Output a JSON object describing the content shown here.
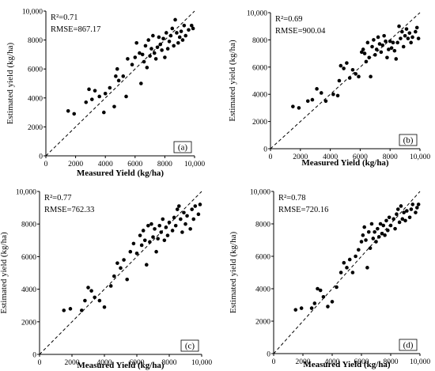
{
  "chart_data": [
    {
      "type": "scatter",
      "panel": "a",
      "panel_label": "(a)",
      "stats": {
        "r2": "R²=0.71",
        "rmse": "RMSE=867.17"
      },
      "xlabel": "Measured Yield (kg/ha)",
      "ylabel": "Estimated yield (kg/ha)",
      "xlim": [
        0,
        10000
      ],
      "ylim": [
        0,
        10000
      ],
      "xticks": [
        "0",
        "2000",
        "4000",
        "6000",
        "8000",
        "10,000"
      ],
      "yticks": [
        "0",
        "2000",
        "4000",
        "6000",
        "8000",
        "10,000"
      ],
      "reference_line": "1:1 dashed",
      "points": [
        [
          1500,
          3100
        ],
        [
          1900,
          2900
        ],
        [
          2700,
          3700
        ],
        [
          2900,
          4600
        ],
        [
          3100,
          3900
        ],
        [
          3300,
          4500
        ],
        [
          3600,
          4100
        ],
        [
          3900,
          3000
        ],
        [
          4000,
          4300
        ],
        [
          4300,
          4700
        ],
        [
          4600,
          3400
        ],
        [
          4700,
          5500
        ],
        [
          4800,
          6000
        ],
        [
          4900,
          5200
        ],
        [
          5200,
          5500
        ],
        [
          5400,
          4100
        ],
        [
          5500,
          6700
        ],
        [
          5800,
          6300
        ],
        [
          6000,
          6800
        ],
        [
          6100,
          7800
        ],
        [
          6300,
          7100
        ],
        [
          6400,
          5000
        ],
        [
          6500,
          7000
        ],
        [
          6600,
          6500
        ],
        [
          6700,
          7600
        ],
        [
          6800,
          6100
        ],
        [
          6900,
          8000
        ],
        [
          7000,
          6900
        ],
        [
          7100,
          7400
        ],
        [
          7200,
          8300
        ],
        [
          7300,
          7100
        ],
        [
          7400,
          6700
        ],
        [
          7500,
          7500
        ],
        [
          7600,
          8200
        ],
        [
          7700,
          7700
        ],
        [
          7800,
          7300
        ],
        [
          7900,
          8100
        ],
        [
          8000,
          6800
        ],
        [
          8100,
          8500
        ],
        [
          8200,
          7400
        ],
        [
          8300,
          7900
        ],
        [
          8400,
          8300
        ],
        [
          8500,
          8800
        ],
        [
          8600,
          7600
        ],
        [
          8700,
          9400
        ],
        [
          8800,
          8500
        ],
        [
          8900,
          7800
        ],
        [
          9000,
          8200
        ],
        [
          9100,
          8600
        ],
        [
          9200,
          8000
        ],
        [
          9300,
          9000
        ],
        [
          9400,
          8300
        ],
        [
          9600,
          8700
        ],
        [
          9800,
          9000
        ],
        [
          9900,
          8800
        ]
      ]
    },
    {
      "type": "scatter",
      "panel": "b",
      "panel_label": "(b)",
      "stats": {
        "r2": "R²=0.69",
        "rmse": "RMSE=900.04"
      },
      "xlabel": "Measured Yield (kg/ha)",
      "ylabel": "Estimated yield (kg/ha)",
      "xlim": [
        0,
        10000
      ],
      "ylim": [
        0,
        10000
      ],
      "xticks": [
        "0",
        "2000",
        "4000",
        "6000",
        "8000",
        "10,000"
      ],
      "yticks": [
        "0",
        "2000",
        "4000",
        "6000",
        "8000",
        "10,000"
      ],
      "reference_line": "1:1 dashed",
      "points": [
        [
          1500,
          3100
        ],
        [
          1900,
          3000
        ],
        [
          2500,
          3500
        ],
        [
          2800,
          3600
        ],
        [
          3100,
          4400
        ],
        [
          3400,
          4100
        ],
        [
          3700,
          3500
        ],
        [
          4200,
          4000
        ],
        [
          4500,
          3900
        ],
        [
          4600,
          5000
        ],
        [
          4700,
          6100
        ],
        [
          4900,
          5900
        ],
        [
          5100,
          6300
        ],
        [
          5300,
          5200
        ],
        [
          5500,
          5800
        ],
        [
          5700,
          5500
        ],
        [
          5900,
          5300
        ],
        [
          6100,
          7100
        ],
        [
          6200,
          7300
        ],
        [
          6300,
          7000
        ],
        [
          6400,
          6400
        ],
        [
          6500,
          7800
        ],
        [
          6600,
          6700
        ],
        [
          6700,
          5300
        ],
        [
          6800,
          7500
        ],
        [
          6900,
          8000
        ],
        [
          7000,
          6900
        ],
        [
          7100,
          7300
        ],
        [
          7200,
          8200
        ],
        [
          7300,
          7700
        ],
        [
          7400,
          7100
        ],
        [
          7500,
          7600
        ],
        [
          7600,
          8300
        ],
        [
          7700,
          7900
        ],
        [
          7800,
          6700
        ],
        [
          7900,
          7300
        ],
        [
          8000,
          7900
        ],
        [
          8100,
          7400
        ],
        [
          8200,
          7800
        ],
        [
          8300,
          7200
        ],
        [
          8400,
          6600
        ],
        [
          8500,
          7800
        ],
        [
          8600,
          9000
        ],
        [
          8700,
          8100
        ],
        [
          8800,
          8600
        ],
        [
          8900,
          7500
        ],
        [
          9000,
          8300
        ],
        [
          9100,
          8800
        ],
        [
          9200,
          8100
        ],
        [
          9300,
          8500
        ],
        [
          9400,
          7800
        ],
        [
          9500,
          8200
        ],
        [
          9700,
          8600
        ],
        [
          9800,
          8900
        ],
        [
          9900,
          8100
        ]
      ]
    },
    {
      "type": "scatter",
      "panel": "c",
      "panel_label": "(c)",
      "stats": {
        "r2": "R²=0.77",
        "rmse": "RMSE=762.33"
      },
      "xlabel": "Measured Yield (kg/ha)",
      "ylabel": "Estimated yield (kg/ha)",
      "xlim": [
        0,
        10000
      ],
      "ylim": [
        0,
        10000
      ],
      "xticks": [
        "0",
        "2000",
        "4000",
        "6000",
        "8000",
        "10,000"
      ],
      "yticks": [
        "0",
        "2000",
        "4000",
        "6000",
        "8000",
        "10,000"
      ],
      "reference_line": "1:1 dashed",
      "points": [
        [
          1500,
          2700
        ],
        [
          1900,
          2800
        ],
        [
          2600,
          2700
        ],
        [
          2800,
          3300
        ],
        [
          3000,
          4100
        ],
        [
          3200,
          3900
        ],
        [
          3400,
          3500
        ],
        [
          3700,
          3300
        ],
        [
          4000,
          2900
        ],
        [
          4400,
          4200
        ],
        [
          4600,
          4800
        ],
        [
          4800,
          5600
        ],
        [
          5000,
          5300
        ],
        [
          5200,
          5800
        ],
        [
          5400,
          4600
        ],
        [
          5600,
          6300
        ],
        [
          5800,
          6800
        ],
        [
          6000,
          6200
        ],
        [
          6200,
          7300
        ],
        [
          6300,
          6700
        ],
        [
          6400,
          7600
        ],
        [
          6500,
          7000
        ],
        [
          6600,
          5500
        ],
        [
          6700,
          7900
        ],
        [
          6800,
          6900
        ],
        [
          6900,
          8000
        ],
        [
          7000,
          7200
        ],
        [
          7100,
          7700
        ],
        [
          7200,
          6300
        ],
        [
          7300,
          7100
        ],
        [
          7400,
          7900
        ],
        [
          7500,
          7500
        ],
        [
          7600,
          8300
        ],
        [
          7700,
          7000
        ],
        [
          7800,
          7800
        ],
        [
          7900,
          7300
        ],
        [
          8000,
          8100
        ],
        [
          8200,
          7600
        ],
        [
          8300,
          8400
        ],
        [
          8400,
          7900
        ],
        [
          8500,
          8900
        ],
        [
          8600,
          9100
        ],
        [
          8700,
          8300
        ],
        [
          8800,
          7500
        ],
        [
          8900,
          8700
        ],
        [
          9000,
          8000
        ],
        [
          9100,
          8500
        ],
        [
          9300,
          7700
        ],
        [
          9400,
          8900
        ],
        [
          9500,
          8300
        ],
        [
          9600,
          9100
        ],
        [
          9800,
          8600
        ],
        [
          9900,
          9200
        ]
      ]
    },
    {
      "type": "scatter",
      "panel": "d",
      "panel_label": "(d)",
      "stats": {
        "r2": "R²=0.78",
        "rmse": "RMSE=720.16"
      },
      "xlabel": "Measured Yield (kg/ha)",
      "ylabel": "Estimated yield (kg/ha)",
      "xlim": [
        0,
        10000
      ],
      "ylim": [
        0,
        10000
      ],
      "xticks": [
        "0",
        "2000",
        "4000",
        "6000",
        "8000",
        "10,000"
      ],
      "yticks": [
        "0",
        "2000",
        "4000",
        "6000",
        "8000",
        "10,000"
      ],
      "reference_line": "1:1 dashed",
      "points": [
        [
          1500,
          2700
        ],
        [
          1900,
          2800
        ],
        [
          2600,
          2800
        ],
        [
          2800,
          3100
        ],
        [
          3000,
          4000
        ],
        [
          3200,
          3900
        ],
        [
          3400,
          3500
        ],
        [
          3700,
          2900
        ],
        [
          4000,
          3200
        ],
        [
          4300,
          4100
        ],
        [
          4600,
          5000
        ],
        [
          4800,
          5600
        ],
        [
          5000,
          5300
        ],
        [
          5200,
          5800
        ],
        [
          5400,
          5000
        ],
        [
          5600,
          6000
        ],
        [
          5800,
          6400
        ],
        [
          6000,
          6900
        ],
        [
          6100,
          7300
        ],
        [
          6200,
          7800
        ],
        [
          6300,
          7000
        ],
        [
          6400,
          5300
        ],
        [
          6500,
          7500
        ],
        [
          6600,
          6500
        ],
        [
          6700,
          8000
        ],
        [
          6800,
          7100
        ],
        [
          6900,
          7500
        ],
        [
          7000,
          6900
        ],
        [
          7100,
          7700
        ],
        [
          7200,
          7200
        ],
        [
          7300,
          8000
        ],
        [
          7400,
          7400
        ],
        [
          7500,
          7900
        ],
        [
          7600,
          7300
        ],
        [
          7700,
          8200
        ],
        [
          7800,
          7600
        ],
        [
          7900,
          8400
        ],
        [
          8000,
          7900
        ],
        [
          8200,
          8300
        ],
        [
          8300,
          7700
        ],
        [
          8400,
          8600
        ],
        [
          8500,
          8900
        ],
        [
          8600,
          8100
        ],
        [
          8700,
          9100
        ],
        [
          8800,
          8300
        ],
        [
          8900,
          8700
        ],
        [
          9000,
          8200
        ],
        [
          9100,
          8800
        ],
        [
          9300,
          8400
        ],
        [
          9400,
          8900
        ],
        [
          9500,
          9200
        ],
        [
          9700,
          8700
        ],
        [
          9800,
          9000
        ],
        [
          9900,
          9200
        ]
      ]
    }
  ]
}
